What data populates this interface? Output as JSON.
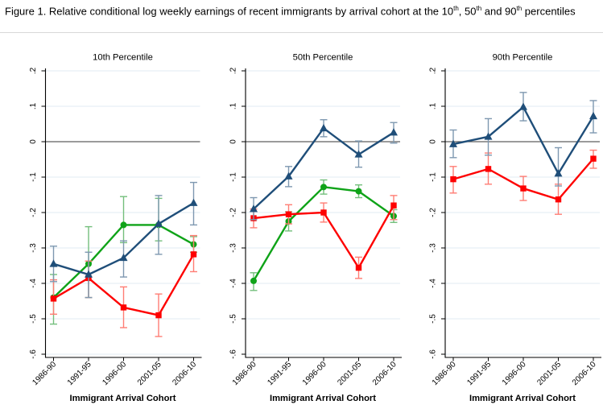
{
  "header": {
    "title_plain": "Figure 1. Relative conditional log weekly earnings of recent immigrants by arrival cohort at the 10th, 50th and 90th percentiles",
    "title_segments": [
      {
        "text": "Figure 1. Relative conditional log weekly earnings of recent immigrants by arrival cohort at the 10",
        "sup": false
      },
      {
        "text": "th",
        "sup": true
      },
      {
        "text": ", 50",
        "sup": false
      },
      {
        "text": "th",
        "sup": true
      },
      {
        "text": " and 90",
        "sup": false
      },
      {
        "text": "th",
        "sup": true
      },
      {
        "text": " percentiles",
        "sup": false
      }
    ]
  },
  "chart_data": {
    "type": "line",
    "title": "Relative conditional log weekly earnings of recent immigrants by arrival cohort at the 10th, 50th and 90th percentiles",
    "categories": [
      "1986-90",
      "1991-95",
      "1996-00",
      "2001-05",
      "2006-10"
    ],
    "xlabel": "Immigrant Arrival Cohort",
    "ylim": [
      -0.6,
      0.2
    ],
    "ytick_values": [
      0.2,
      0.1,
      0,
      -0.1,
      -0.2,
      -0.3,
      -0.4,
      -0.5,
      -0.6
    ],
    "ytick_labels": [
      ".2",
      ".1",
      "0",
      "-.1",
      "-.2",
      "-.3",
      "-.4",
      "-.5",
      "-.6"
    ],
    "grid": true,
    "zero_line": true,
    "legend_position": "none",
    "error_bars": true,
    "colors": {
      "grid": "#e0ebf3",
      "zero_line": "#5f5f5f",
      "axis": "#000000",
      "title_separator": "#d8d8d8",
      "navy": "#1f4e79",
      "green": "#0fa318",
      "red": "#fe0000"
    },
    "panels": [
      {
        "title": "10th Percentile",
        "series": [
          {
            "name": "green-circle",
            "marker": "circle",
            "color": "#0fa318",
            "error_color": "#74bf7c",
            "values": [
              -0.44,
              -0.345,
              -0.235,
              -0.235,
              -0.29
            ],
            "ci_low": [
              -0.515,
              -0.44,
              -0.285,
              -0.28,
              -0.312
            ],
            "ci_high": [
              -0.375,
              -0.24,
              -0.155,
              -0.16,
              -0.268
            ]
          },
          {
            "name": "red-square",
            "marker": "square",
            "color": "#fe0000",
            "error_color": "#ff7d74",
            "values": [
              -0.443,
              -0.385,
              -0.468,
              -0.49,
              -0.318
            ],
            "ci_low": [
              -0.487,
              -0.44,
              -0.525,
              -0.55,
              -0.367
            ],
            "ci_high": [
              -0.39,
              -0.337,
              -0.41,
              -0.43,
              -0.265
            ]
          },
          {
            "name": "navy-triangle",
            "marker": "triangle",
            "color": "#1f4e79",
            "error_color": "#7e98b0",
            "values": [
              -0.345,
              -0.375,
              -0.328,
              -0.232,
              -0.173
            ],
            "ci_low": [
              -0.395,
              -0.44,
              -0.382,
              -0.318,
              -0.235
            ],
            "ci_high": [
              -0.295,
              -0.312,
              -0.28,
              -0.152,
              -0.115
            ]
          }
        ]
      },
      {
        "title": "50th Percentile",
        "series": [
          {
            "name": "green-circle",
            "marker": "circle",
            "color": "#0fa318",
            "error_color": "#74bf7c",
            "values": [
              -0.393,
              -0.225,
              -0.128,
              -0.14,
              -0.21
            ],
            "ci_low": [
              -0.42,
              -0.252,
              -0.148,
              -0.158,
              -0.228
            ],
            "ci_high": [
              -0.37,
              -0.198,
              -0.108,
              -0.122,
              -0.192
            ]
          },
          {
            "name": "red-square",
            "marker": "square",
            "color": "#fe0000",
            "error_color": "#ff7d74",
            "values": [
              -0.216,
              -0.205,
              -0.2,
              -0.356,
              -0.18
            ],
            "ci_low": [
              -0.243,
              -0.232,
              -0.227,
              -0.386,
              -0.22
            ],
            "ci_high": [
              -0.19,
              -0.178,
              -0.173,
              -0.326,
              -0.152
            ]
          },
          {
            "name": "navy-triangle",
            "marker": "triangle",
            "color": "#1f4e79",
            "error_color": "#7e98b0",
            "values": [
              -0.19,
              -0.098,
              0.038,
              -0.036,
              0.026
            ],
            "ci_low": [
              -0.22,
              -0.127,
              0.014,
              -0.072,
              -0.004
            ],
            "ci_high": [
              -0.158,
              -0.07,
              0.062,
              0.002,
              0.054
            ]
          }
        ]
      },
      {
        "title": "90th Percentile",
        "series": [
          {
            "name": "red-square",
            "marker": "square",
            "color": "#fe0000",
            "error_color": "#ff7d74",
            "values": [
              -0.106,
              -0.077,
              -0.132,
              -0.163,
              -0.048
            ],
            "ci_low": [
              -0.145,
              -0.12,
              -0.166,
              -0.205,
              -0.075
            ],
            "ci_high": [
              -0.07,
              -0.032,
              -0.098,
              -0.12,
              -0.024
            ]
          },
          {
            "name": "navy-triangle",
            "marker": "triangle",
            "color": "#1f4e79",
            "error_color": "#7e98b0",
            "values": [
              -0.007,
              0.014,
              0.098,
              -0.09,
              0.072
            ],
            "ci_low": [
              -0.045,
              -0.038,
              0.059,
              -0.125,
              0.025
            ],
            "ci_high": [
              0.033,
              0.065,
              0.139,
              -0.017,
              0.116
            ]
          }
        ]
      }
    ]
  }
}
